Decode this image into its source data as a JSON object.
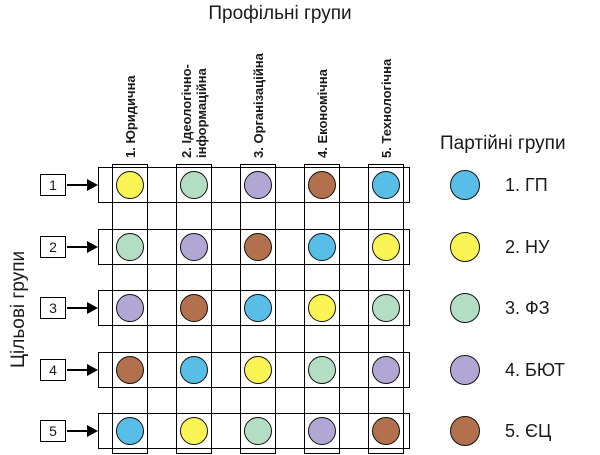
{
  "titles": {
    "top": "Профільні групи",
    "left_axis": "Цільові групи",
    "legend": "Партійні групи"
  },
  "columns": [
    {
      "lines": [
        "1. Юридична"
      ]
    },
    {
      "lines": [
        "2. Ідеологічно-",
        "інформаційна"
      ]
    },
    {
      "lines": [
        "3. Організаційна"
      ]
    },
    {
      "lines": [
        "4. Економічна"
      ]
    },
    {
      "lines": [
        "5. Технологічна"
      ]
    }
  ],
  "rows": [
    "1",
    "2",
    "3",
    "4",
    "5"
  ],
  "parties": [
    {
      "label": "1. ГП",
      "color": "#58BEE8"
    },
    {
      "label": "2. НУ",
      "color": "#FBF455"
    },
    {
      "label": "3. ФЗ",
      "color": "#B4DEC3"
    },
    {
      "label": "4. БЮТ",
      "color": "#B2A7D4"
    },
    {
      "label": "5. ЄЦ",
      "color": "#B2714C"
    }
  ],
  "matrix": [
    [
      2,
      3,
      4,
      5,
      1
    ],
    [
      3,
      4,
      5,
      1,
      2
    ],
    [
      4,
      5,
      1,
      2,
      3
    ],
    [
      5,
      1,
      2,
      3,
      4
    ],
    [
      1,
      2,
      3,
      4,
      5
    ]
  ]
}
